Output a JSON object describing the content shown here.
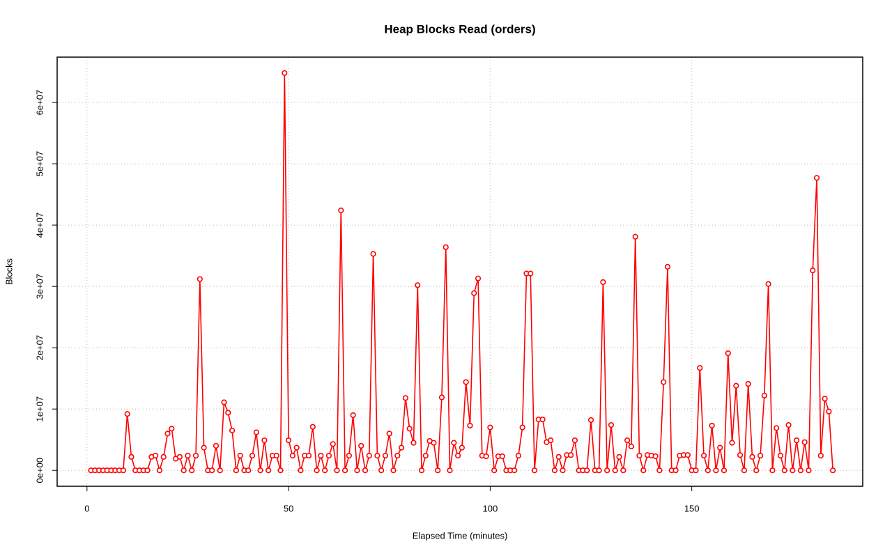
{
  "chart_data": {
    "type": "line",
    "title": "Heap Blocks Read (orders)",
    "x_label": "Elapsed Time (minutes)",
    "y_label": "Blocks",
    "color": "#ff0000",
    "grid": true,
    "x": [
      1,
      2,
      3,
      4,
      5,
      6,
      7,
      8,
      9,
      10,
      11,
      12,
      13,
      14,
      15,
      16,
      17,
      18,
      19,
      20,
      21,
      22,
      23,
      24,
      25,
      26,
      27,
      28,
      29,
      30,
      31,
      32,
      33,
      34,
      35,
      36,
      37,
      38,
      39,
      40,
      41,
      42,
      43,
      44,
      45,
      46,
      47,
      48,
      49,
      50,
      51,
      52,
      53,
      54,
      55,
      56,
      57,
      58,
      59,
      60,
      61,
      62,
      63,
      64,
      65,
      66,
      67,
      68,
      69,
      70,
      71,
      72,
      73,
      74,
      75,
      76,
      77,
      78,
      79,
      80,
      81,
      82,
      83,
      84,
      85,
      86,
      87,
      88,
      89,
      90,
      91,
      92,
      93,
      94,
      95,
      96,
      97,
      98,
      99,
      100,
      101,
      102,
      103,
      104,
      105,
      106,
      107,
      108,
      109,
      110,
      111,
      112,
      113,
      114,
      115,
      116,
      117,
      118,
      119,
      120,
      121,
      122,
      123,
      124,
      125,
      126,
      127,
      128,
      129,
      130,
      131,
      132,
      133,
      134,
      135,
      136,
      137,
      138,
      139,
      140,
      141,
      142,
      143,
      144,
      145,
      146,
      147,
      148,
      149,
      150,
      151,
      152,
      153,
      154,
      155,
      156,
      157,
      158,
      159,
      160,
      161,
      162,
      163,
      164,
      165,
      166,
      167,
      168,
      169,
      170,
      171,
      172,
      173,
      174,
      175,
      176,
      177,
      178,
      179,
      180,
      181,
      182,
      183,
      184,
      185
    ],
    "values": [
      0,
      0,
      0,
      0,
      0,
      0,
      0,
      0,
      0,
      9200000,
      2200000,
      0,
      0,
      0,
      0,
      2200000,
      2400000,
      0,
      2200000,
      6000000,
      6800000,
      1900000,
      2200000,
      0,
      2400000,
      0,
      2400000,
      31200000,
      3700000,
      0,
      0,
      4000000,
      0,
      11100000,
      9400000,
      6500000,
      0,
      2400000,
      0,
      0,
      2400000,
      6200000,
      0,
      4900000,
      0,
      2400000,
      2400000,
      0,
      64800000,
      4900000,
      2400000,
      3700000,
      0,
      2400000,
      2400000,
      7100000,
      0,
      2400000,
      0,
      2400000,
      4300000,
      0,
      42400000,
      0,
      2400000,
      9000000,
      0,
      4000000,
      0,
      2400000,
      35300000,
      2400000,
      0,
      2400000,
      6000000,
      0,
      2400000,
      3700000,
      11800000,
      6800000,
      4500000,
      30200000,
      0,
      2400000,
      4800000,
      4500000,
      0,
      11900000,
      36400000,
      0,
      4500000,
      2400000,
      3700000,
      14400000,
      7300000,
      28900000,
      31300000,
      2400000,
      2300000,
      7000000,
      0,
      2300000,
      2300000,
      0,
      0,
      0,
      2400000,
      7000000,
      32100000,
      32100000,
      0,
      8300000,
      8300000,
      4600000,
      4900000,
      0,
      2200000,
      0,
      2500000,
      2500000,
      4900000,
      0,
      0,
      0,
      8200000,
      0,
      0,
      30700000,
      0,
      7400000,
      0,
      2200000,
      0,
      4900000,
      3900000,
      38100000,
      2400000,
      0,
      2500000,
      2400000,
      2300000,
      0,
      14400000,
      33200000,
      0,
      0,
      2400000,
      2500000,
      2500000,
      0,
      0,
      16700000,
      2400000,
      0,
      7300000,
      0,
      3700000,
      0,
      19100000,
      4500000,
      13800000,
      2500000,
      0,
      14100000,
      2200000,
      0,
      2400000,
      12200000,
      30400000,
      0,
      6900000,
      2400000,
      0,
      7400000,
      0,
      4900000,
      0,
      4600000,
      0,
      32600000,
      47700000,
      2400000,
      11700000,
      9600000,
      0
    ],
    "xlim": [
      -7.4,
      192.4
    ],
    "xticks": [
      0,
      50,
      100,
      150
    ],
    "ylim": [
      -2590000,
      67390000
    ],
    "yticks": [
      {
        "value": 0,
        "label": "0e+00"
      },
      {
        "value": 10000000,
        "label": "1e+07"
      },
      {
        "value": 20000000,
        "label": "2e+07"
      },
      {
        "value": 30000000,
        "label": "3e+07"
      },
      {
        "value": 40000000,
        "label": "4e+07"
      },
      {
        "value": 50000000,
        "label": "5e+07"
      },
      {
        "value": 60000000,
        "label": "6e+07"
      }
    ]
  }
}
